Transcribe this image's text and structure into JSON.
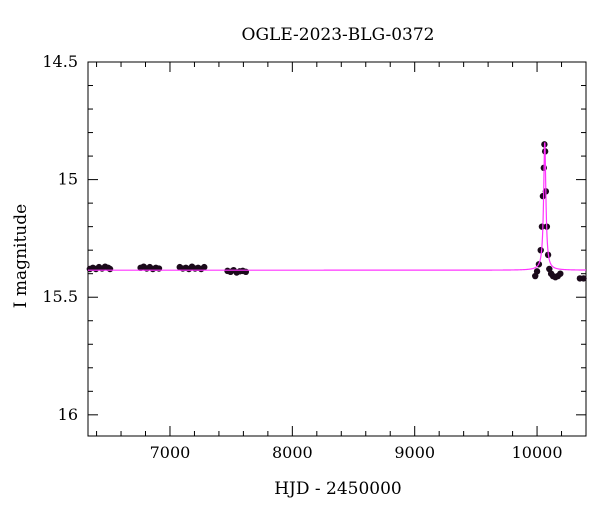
{
  "chart_data": {
    "type": "scatter",
    "title": "OGLE-2023-BLG-0372",
    "xlabel": "HJD - 2450000",
    "ylabel": "I magnitude",
    "xlim": [
      6330,
      10400
    ],
    "ylim": [
      16.09,
      14.5
    ],
    "y_inverted": true,
    "grid": false,
    "legend": "none",
    "x_ticks": [
      {
        "value": 7000,
        "label": "7000"
      },
      {
        "value": 8000,
        "label": "8000"
      },
      {
        "value": 9000,
        "label": "9000"
      },
      {
        "value": 10000,
        "label": "10000"
      }
    ],
    "y_ticks": [
      {
        "value": 14.5,
        "label": "14.5"
      },
      {
        "value": 15,
        "label": "15"
      },
      {
        "value": 15.5,
        "label": "15.5"
      },
      {
        "value": 16,
        "label": "16"
      }
    ],
    "colors": {
      "points": "#1a0a1a",
      "model": "#ff33ff"
    },
    "series": [
      {
        "kind": "points",
        "x": [
          6345,
          6370,
          6395,
          6420,
          6445,
          6470,
          6495,
          6510,
          6760,
          6785,
          6810,
          6835,
          6860,
          6885,
          6910,
          7080,
          7105,
          7130,
          7155,
          7180,
          7205,
          7230,
          7255,
          7280,
          7470,
          7495,
          7520,
          7545,
          7570,
          7595,
          7620,
          9985,
          10000,
          10015,
          10030,
          10040,
          10048,
          10055,
          10060,
          10066,
          10072,
          10080,
          10090,
          10100,
          10115,
          10130,
          10150,
          10170,
          10190,
          10350,
          10380
        ],
        "y": [
          15.38,
          15.375,
          15.38,
          15.372,
          15.378,
          15.37,
          15.375,
          15.38,
          15.375,
          15.37,
          15.378,
          15.372,
          15.38,
          15.375,
          15.378,
          15.372,
          15.378,
          15.375,
          15.38,
          15.37,
          15.378,
          15.375,
          15.38,
          15.372,
          15.388,
          15.392,
          15.385,
          15.395,
          15.39,
          15.388,
          15.392,
          15.41,
          15.39,
          15.36,
          15.3,
          15.2,
          15.07,
          14.95,
          14.85,
          14.88,
          15.05,
          15.2,
          15.32,
          15.38,
          15.4,
          15.41,
          15.415,
          15.41,
          15.4,
          15.42,
          15.42
        ]
      },
      {
        "kind": "model",
        "baseline": 15.385,
        "t0": 10063,
        "peak": 14.84,
        "width": 14
      }
    ]
  }
}
